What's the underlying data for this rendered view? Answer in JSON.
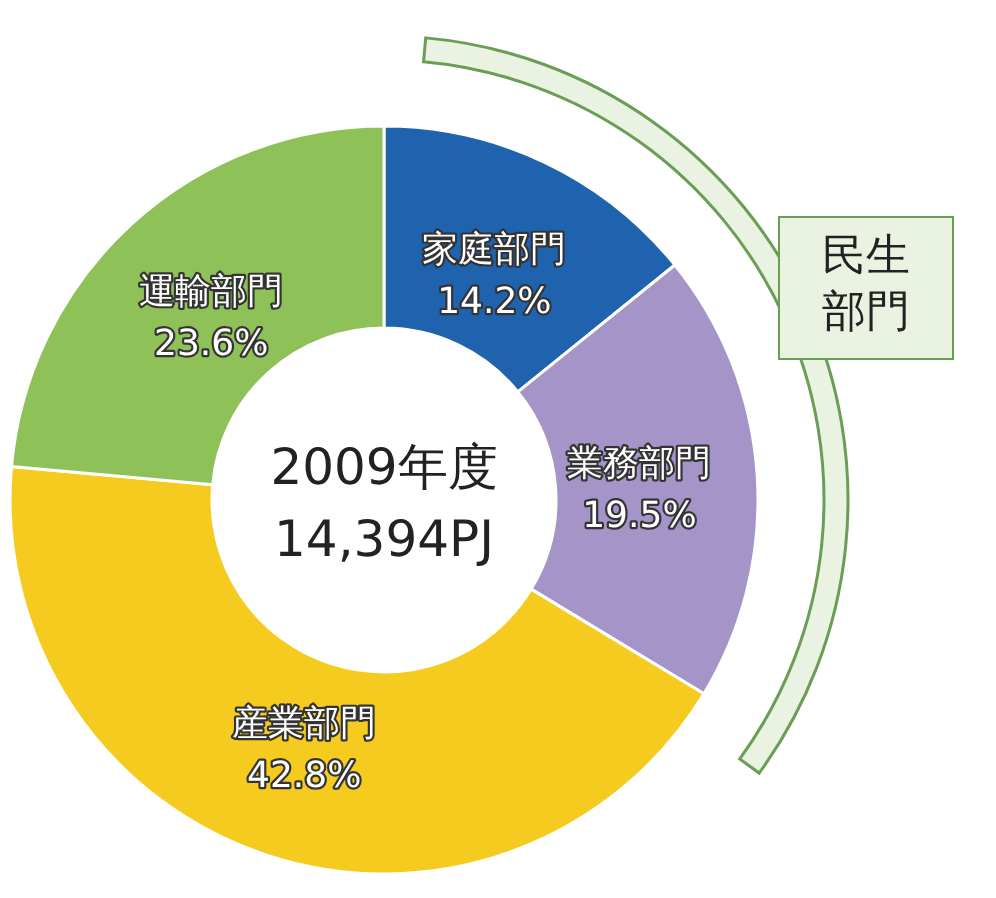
{
  "chart_data": {
    "type": "donut",
    "title": "2009年度",
    "subtitle": "14,394PJ",
    "categories": [
      "家庭部門",
      "業務部門",
      "産業部門",
      "運輸部門"
    ],
    "values": [
      14.2,
      19.5,
      42.8,
      23.6
    ],
    "value_labels": [
      "14.2%",
      "19.5%",
      "42.8%",
      "23.6%"
    ],
    "colors": [
      "#1f62ae",
      "#a594c7",
      "#f6cb1f",
      "#8fc159"
    ],
    "annotations": [
      "民生部門"
    ]
  }
}
